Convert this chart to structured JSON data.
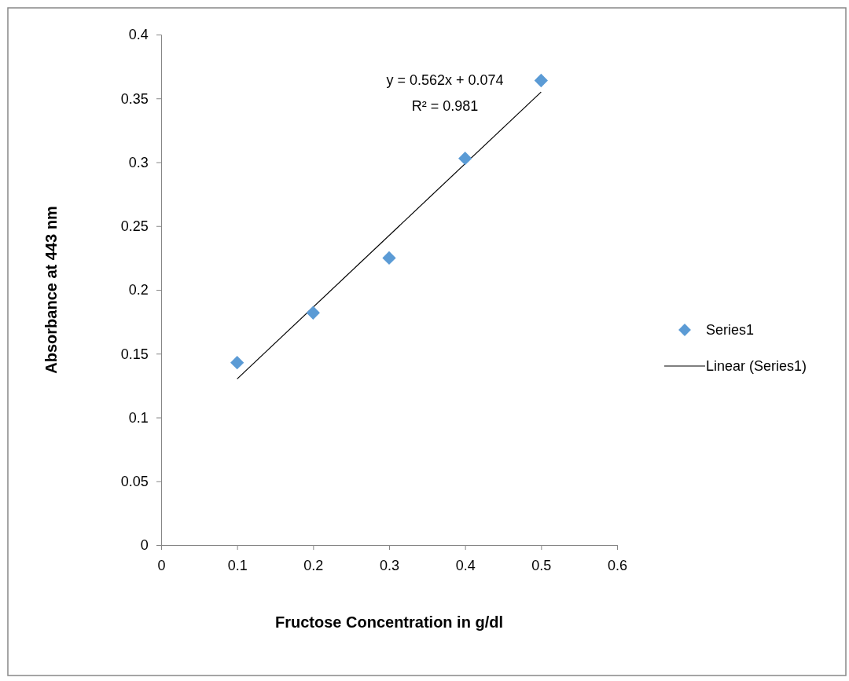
{
  "chart_data": {
    "type": "scatter",
    "xlabel": "Fructose Concentration in g/dl",
    "ylabel": "Absorbance at 443 nm",
    "xlim": [
      0,
      0.6
    ],
    "xticks": [
      0,
      0.1,
      0.2,
      0.3,
      0.4,
      0.5,
      0.6
    ],
    "ylim": [
      0,
      0.4
    ],
    "yticks": [
      0,
      0.05,
      0.1,
      0.15,
      0.2,
      0.25,
      0.3,
      0.35,
      0.4
    ],
    "grid": false,
    "legend": "right",
    "annotations": [
      "y = 0.562x + 0.074",
      "R² = 0.981"
    ],
    "series": [
      {
        "name": "Series1",
        "type": "scatter",
        "marker": "diamond",
        "color": "#5b9bd5",
        "x": [
          0.1,
          0.2,
          0.3,
          0.4,
          0.5
        ],
        "values": [
          0.143,
          0.182,
          0.225,
          0.303,
          0.364
        ]
      },
      {
        "name": "Linear (Series1)",
        "type": "line",
        "marker": "none",
        "line_style": "solid",
        "color": "#000000",
        "x": [
          0.1,
          0.5
        ],
        "values": [
          0.1302,
          0.355
        ]
      }
    ]
  }
}
